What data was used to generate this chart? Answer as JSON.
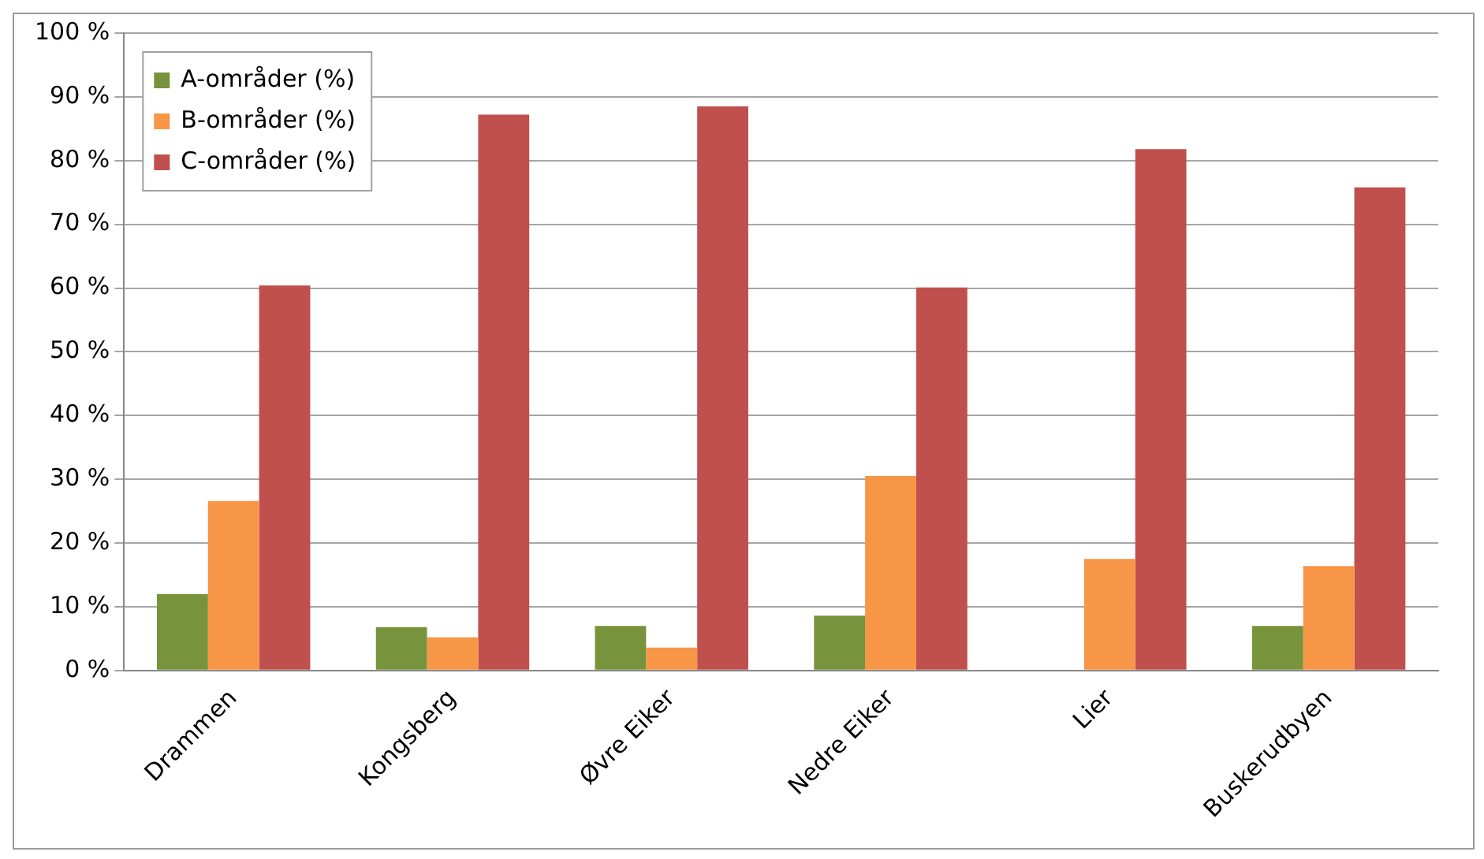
{
  "chart_data": {
    "type": "bar",
    "categories": [
      "Drammen",
      "Kongsberg",
      "Øvre Eiker",
      "Nedre Eiker",
      "Lier",
      "Buskerudbyen"
    ],
    "series": [
      {
        "name": "A-områder (%)",
        "color": "#77933c",
        "values": [
          12,
          6.8,
          7,
          8.6,
          0,
          7
        ]
      },
      {
        "name": "B-områder (%)",
        "color": "#f79646",
        "values": [
          26.6,
          5.2,
          3.6,
          30.5,
          17.5,
          16.4
        ]
      },
      {
        "name": "C-områder (%)",
        "color": "#c0504d",
        "values": [
          60.4,
          87.2,
          88.5,
          60.1,
          81.8,
          75.8
        ]
      }
    ],
    "ylim": [
      0,
      100
    ],
    "yticks": [
      {
        "value": 0,
        "label": "0 %"
      },
      {
        "value": 10,
        "label": "10 %"
      },
      {
        "value": 20,
        "label": "20 %"
      },
      {
        "value": 30,
        "label": "30 %"
      },
      {
        "value": 40,
        "label": "40 %"
      },
      {
        "value": 50,
        "label": "50 %"
      },
      {
        "value": 60,
        "label": "60 %"
      },
      {
        "value": 70,
        "label": "70 %"
      },
      {
        "value": 80,
        "label": "80 %"
      },
      {
        "value": 90,
        "label": "90 %"
      },
      {
        "value": 100,
        "label": "100 %"
      }
    ],
    "grid": "y",
    "legend": "top left"
  }
}
